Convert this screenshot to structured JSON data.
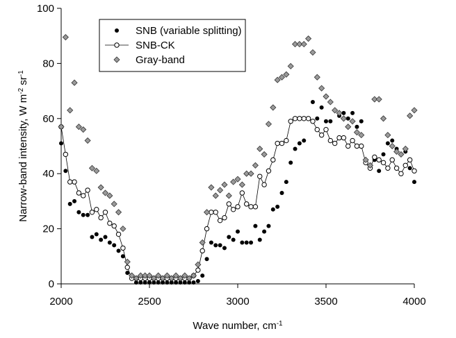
{
  "chart_data": {
    "type": "scatter",
    "x_label": [
      "Wave number, cm",
      "-1"
    ],
    "y_label": [
      "Narrow-band intensity, W m",
      "-2",
      " sr",
      "-1"
    ],
    "x": [
      2000,
      2025,
      2050,
      2075,
      2100,
      2125,
      2150,
      2175,
      2200,
      2225,
      2250,
      2275,
      2300,
      2325,
      2350,
      2375,
      2400,
      2425,
      2450,
      2475,
      2500,
      2525,
      2550,
      2575,
      2600,
      2625,
      2650,
      2675,
      2700,
      2725,
      2750,
      2775,
      2800,
      2825,
      2850,
      2875,
      2900,
      2925,
      2950,
      2975,
      3000,
      3025,
      3050,
      3075,
      3100,
      3125,
      3150,
      3175,
      3200,
      3225,
      3250,
      3275,
      3300,
      3325,
      3350,
      3375,
      3400,
      3425,
      3450,
      3475,
      3500,
      3525,
      3550,
      3575,
      3600,
      3625,
      3650,
      3675,
      3700,
      3725,
      3750,
      3775,
      3800,
      3825,
      3850,
      3875,
      3900,
      3925,
      3950,
      3975,
      4000
    ],
    "series": [
      {
        "name": "SNB (variable splitting)",
        "color": "#000000",
        "marker": "filled-circle",
        "line": false,
        "values": [
          51,
          41,
          29,
          30,
          26,
          25,
          25,
          17,
          18,
          16,
          17,
          15,
          14,
          12,
          10,
          4,
          2,
          0.5,
          0.5,
          0.5,
          0.5,
          0.5,
          0.5,
          0.5,
          0.5,
          0.5,
          0.5,
          0.5,
          0.5,
          0.5,
          0.5,
          1,
          3,
          9,
          15,
          14,
          14,
          13,
          17,
          16,
          19,
          15,
          15,
          15,
          21,
          16,
          19,
          21,
          27,
          28,
          33,
          37,
          44,
          49,
          51,
          52,
          60,
          66,
          60,
          64,
          59,
          59,
          63,
          61,
          62,
          60,
          62,
          57,
          59,
          45,
          42,
          45,
          41,
          47,
          51,
          52,
          49,
          47,
          48,
          42,
          37
        ]
      },
      {
        "name": "SNB-CK",
        "color": "#000000",
        "marker": "open-circle",
        "line": true,
        "values": [
          57,
          47,
          37,
          37,
          33,
          32,
          34,
          26,
          27,
          24,
          26,
          22,
          21,
          18,
          13,
          6,
          2,
          2,
          2,
          2,
          2,
          2,
          2,
          2,
          2,
          2,
          2,
          2,
          2,
          2,
          3,
          5,
          12,
          20,
          26,
          26,
          23,
          24,
          29,
          27,
          28,
          33,
          29,
          28,
          28,
          39,
          36,
          41,
          45,
          51,
          51,
          52,
          59,
          60,
          60,
          60,
          60,
          59,
          56,
          54,
          56,
          52,
          51,
          53,
          53,
          50,
          52,
          50,
          50,
          44,
          42,
          46,
          45,
          44,
          42,
          45,
          42,
          40,
          43,
          45,
          41
        ]
      },
      {
        "name": "Gray-band",
        "color": "#9a9a9a",
        "marker": "diamond",
        "line": false,
        "values": [
          57,
          89.5,
          63,
          73,
          57,
          56,
          52,
          42,
          41,
          35,
          33,
          32,
          29,
          26,
          20,
          8,
          3,
          2,
          3,
          3,
          3,
          2,
          3,
          2,
          3,
          2,
          3,
          2,
          3,
          2,
          3,
          7,
          15,
          26,
          35,
          32,
          34,
          36,
          32,
          37,
          38,
          36,
          40,
          40,
          43,
          49,
          47,
          58,
          64,
          74,
          75,
          76,
          79,
          87,
          87,
          87,
          89,
          84,
          75,
          71,
          68,
          66,
          63,
          62,
          60,
          57,
          59,
          55,
          54,
          45,
          43,
          67,
          67,
          60,
          54,
          50,
          48,
          47,
          49,
          61,
          63
        ]
      }
    ],
    "xlim": [
      2000,
      4000
    ],
    "xticks": [
      2000,
      2500,
      3000,
      3500,
      4000
    ],
    "ylim": [
      0,
      100
    ],
    "yticks": [
      0,
      20,
      40,
      60,
      80,
      100
    ],
    "grid": false,
    "legend": "upper left"
  }
}
